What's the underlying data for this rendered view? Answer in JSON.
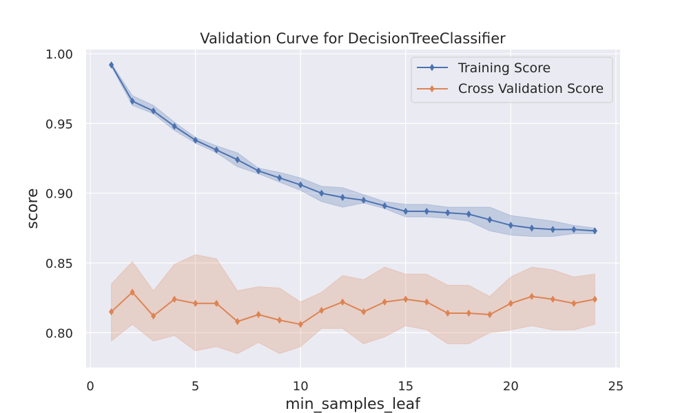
{
  "chart_data": {
    "type": "line",
    "title": "Validation Curve for DecisionTreeClassifier",
    "xlabel": "min_samples_leaf",
    "ylabel": "score",
    "xlim": [
      -0.2,
      25.2
    ],
    "ylim": [
      0.775,
      1.003
    ],
    "xticks": [
      0,
      5,
      10,
      15,
      20,
      25
    ],
    "yticks": [
      "0.80",
      "0.85",
      "0.90",
      "0.95",
      "1.00"
    ],
    "grid": true,
    "legend_position": "top-right",
    "x": [
      1,
      2,
      3,
      4,
      5,
      6,
      7,
      8,
      9,
      10,
      11,
      12,
      13,
      14,
      15,
      16,
      17,
      18,
      19,
      20,
      21,
      22,
      23,
      24
    ],
    "series": [
      {
        "name": "Training Score",
        "color": "#4c72b0",
        "values": [
          0.992,
          0.966,
          0.959,
          0.948,
          0.938,
          0.931,
          0.924,
          0.916,
          0.911,
          0.906,
          0.9,
          0.897,
          0.895,
          0.891,
          0.887,
          0.887,
          0.886,
          0.885,
          0.881,
          0.877,
          0.875,
          0.874,
          0.874,
          0.873
        ],
        "upper": [
          0.993,
          0.97,
          0.963,
          0.951,
          0.94,
          0.934,
          0.929,
          0.918,
          0.915,
          0.911,
          0.905,
          0.904,
          0.899,
          0.894,
          0.892,
          0.892,
          0.89,
          0.89,
          0.89,
          0.884,
          0.882,
          0.88,
          0.877,
          0.875
        ],
        "lower": [
          0.991,
          0.963,
          0.957,
          0.945,
          0.936,
          0.929,
          0.919,
          0.914,
          0.908,
          0.902,
          0.894,
          0.89,
          0.893,
          0.889,
          0.883,
          0.883,
          0.882,
          0.88,
          0.873,
          0.87,
          0.869,
          0.869,
          0.871,
          0.871
        ]
      },
      {
        "name": "Cross Validation Score",
        "color": "#dd8452",
        "values": [
          0.815,
          0.829,
          0.812,
          0.824,
          0.821,
          0.821,
          0.808,
          0.813,
          0.809,
          0.806,
          0.816,
          0.822,
          0.815,
          0.822,
          0.824,
          0.822,
          0.814,
          0.814,
          0.813,
          0.821,
          0.826,
          0.824,
          0.821,
          0.824
        ],
        "upper": [
          0.835,
          0.851,
          0.83,
          0.849,
          0.856,
          0.853,
          0.83,
          0.833,
          0.832,
          0.822,
          0.829,
          0.841,
          0.838,
          0.847,
          0.842,
          0.842,
          0.834,
          0.834,
          0.826,
          0.84,
          0.847,
          0.845,
          0.84,
          0.842
        ],
        "lower": [
          0.794,
          0.806,
          0.794,
          0.798,
          0.787,
          0.79,
          0.785,
          0.793,
          0.785,
          0.79,
          0.803,
          0.803,
          0.792,
          0.797,
          0.805,
          0.802,
          0.792,
          0.792,
          0.8,
          0.802,
          0.805,
          0.802,
          0.802,
          0.806
        ]
      }
    ]
  }
}
